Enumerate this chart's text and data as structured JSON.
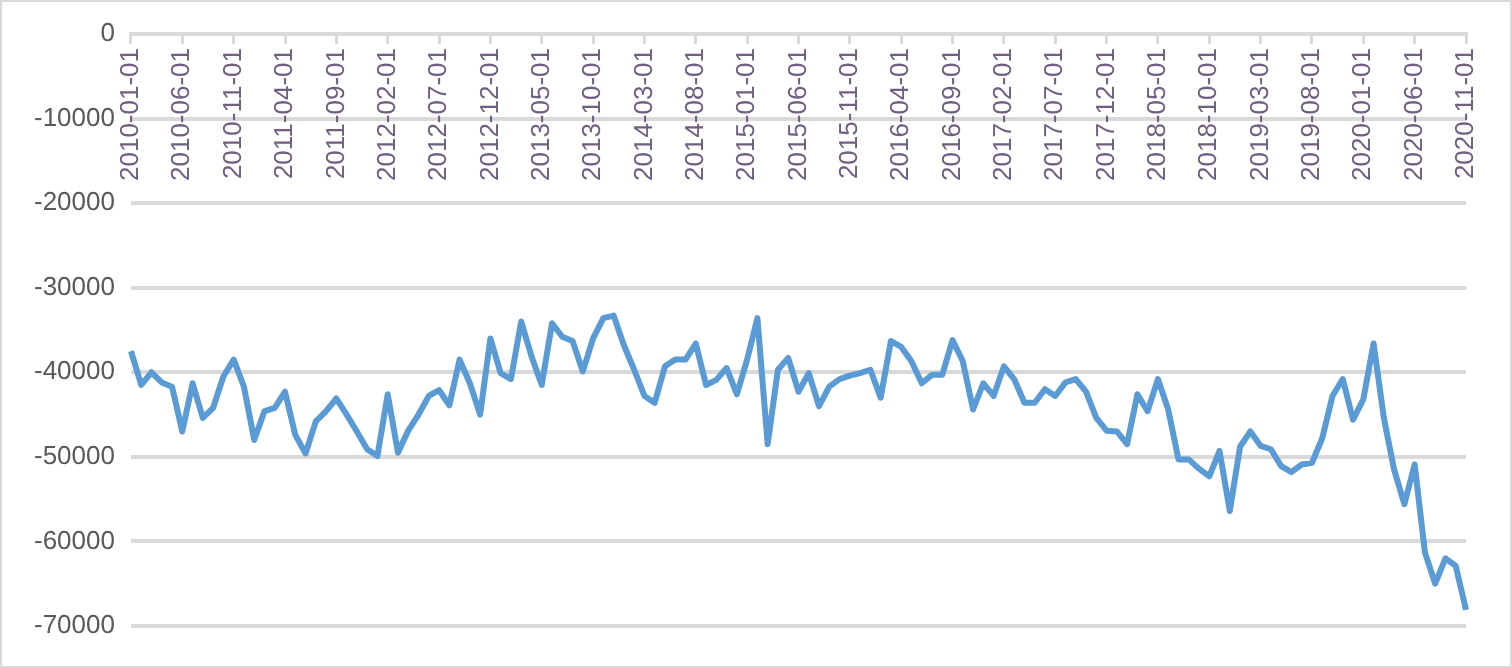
{
  "chart_data": {
    "type": "line",
    "categories": [
      "2010-01-01",
      null,
      null,
      null,
      null,
      "2010-06-01",
      null,
      null,
      null,
      null,
      "2010-11-01",
      null,
      null,
      null,
      null,
      "2011-04-01",
      null,
      null,
      null,
      null,
      "2011-09-01",
      null,
      null,
      null,
      null,
      "2012-02-01",
      null,
      null,
      null,
      null,
      "2012-07-01",
      null,
      null,
      null,
      null,
      "2012-12-01",
      null,
      null,
      null,
      null,
      "2013-05-01",
      null,
      null,
      null,
      null,
      "2013-10-01",
      null,
      null,
      null,
      null,
      "2014-03-01",
      null,
      null,
      null,
      null,
      "2014-08-01",
      null,
      null,
      null,
      null,
      "2015-01-01",
      null,
      null,
      null,
      null,
      "2015-06-01",
      null,
      null,
      null,
      null,
      "2015-11-01",
      null,
      null,
      null,
      null,
      "2016-04-01",
      null,
      null,
      null,
      null,
      "2016-09-01",
      null,
      null,
      null,
      null,
      "2017-02-01",
      null,
      null,
      null,
      null,
      "2017-07-01",
      null,
      null,
      null,
      null,
      "2017-12-01",
      null,
      null,
      null,
      null,
      "2018-05-01",
      null,
      null,
      null,
      null,
      "2018-10-01",
      null,
      null,
      null,
      null,
      "2019-03-01",
      null,
      null,
      null,
      null,
      "2019-08-01",
      null,
      null,
      null,
      null,
      "2020-01-01",
      null,
      null,
      null,
      null,
      "2020-06-01",
      null,
      null,
      null,
      null,
      "2020-11-01"
    ],
    "series": [
      {
        "color": "#5b9bd5",
        "values": [
          -37500,
          -41500,
          -40000,
          -41200,
          -41700,
          -47000,
          -41300,
          -45400,
          -44200,
          -40500,
          -38500,
          -41700,
          -48000,
          -44600,
          -44200,
          -42300,
          -47400,
          -49600,
          -45800,
          -44600,
          -43100,
          -45000,
          -47000,
          -49100,
          -49900,
          -42600,
          -49500,
          -46900,
          -45000,
          -42800,
          -42100,
          -43900,
          -38500,
          -41300,
          -45000,
          -36000,
          -40100,
          -40800,
          -34000,
          -38100,
          -41500,
          -34200,
          -35800,
          -36300,
          -39900,
          -36000,
          -33600,
          -33300,
          -36800,
          -39700,
          -42800,
          -43600,
          -39300,
          -38500,
          -38500,
          -36600,
          -41500,
          -40900,
          -39500,
          -42600,
          -38500,
          -33600,
          -48500,
          -39700,
          -38300,
          -42300,
          -40100,
          -44000,
          -41700,
          -40800,
          -40400,
          -40100,
          -39700,
          -43000,
          -36300,
          -37000,
          -38700,
          -41300,
          -40300,
          -40300,
          -36200,
          -38700,
          -44400,
          -41300,
          -42800,
          -39300,
          -40800,
          -43600,
          -43600,
          -42000,
          -42800,
          -41200,
          -40800,
          -42300,
          -45400,
          -46900,
          -47000,
          -48500,
          -42600,
          -44600,
          -40800,
          -44400,
          -50300,
          -50300,
          -51400,
          -52300,
          -49300,
          -56400,
          -48800,
          -47000,
          -48700,
          -49100,
          -51100,
          -51800,
          -50900,
          -50700,
          -47800,
          -42800,
          -40800,
          -45600,
          -43200,
          -36600,
          -45400,
          -51500,
          -55600,
          -50900,
          -61300,
          -65000,
          -62000,
          -62900,
          -68100
        ]
      }
    ],
    "ylim": [
      -70000,
      0
    ],
    "yticks": [
      0,
      -10000,
      -20000,
      -30000,
      -40000,
      -50000,
      -60000,
      -70000
    ],
    "grid": "y",
    "legend": false,
    "marker": "none",
    "line_style": "solid"
  }
}
